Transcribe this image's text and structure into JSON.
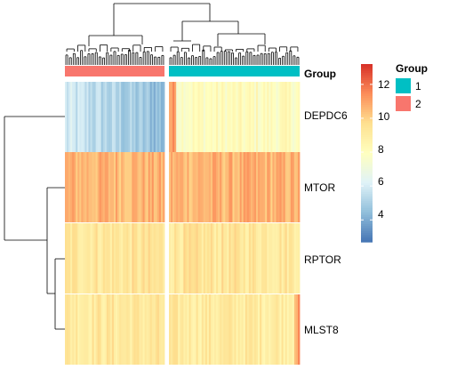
{
  "chart_data": {
    "type": "heatmap",
    "rows": [
      "DEPDC6",
      "MTOR",
      "RPTOR",
      "MLST8"
    ],
    "column_groups": [
      {
        "name": "2",
        "columns": 55,
        "color": "#F8766D"
      },
      {
        "name": "1",
        "columns": 72,
        "color": "#00BFC4"
      }
    ],
    "annotation_title": "Group",
    "legend": {
      "title": "Group",
      "items": [
        {
          "label": "1",
          "color": "#00BFC4"
        },
        {
          "label": "2",
          "color": "#F8766D"
        }
      ]
    },
    "color_scale": {
      "min": 2.7,
      "max": 13.2,
      "ticks": [
        4,
        6,
        8,
        10,
        12
      ],
      "palette": [
        "#4575B4",
        "#91BFDB",
        "#E0F3F8",
        "#FFFFBF",
        "#FEE090",
        "#FC8D59",
        "#D73027"
      ]
    },
    "row_mean_by_group": [
      {
        "row": "DEPDC6",
        "group_2": 5.8,
        "group_1": 8.0
      },
      {
        "row": "MTOR",
        "group_2": 10.6,
        "group_1": 10.6
      },
      {
        "row": "RPTOR",
        "group_2": 9.3,
        "group_1": 9.3
      },
      {
        "row": "MLST8",
        "group_2": 9.2,
        "group_1": 9.1
      }
    ]
  }
}
